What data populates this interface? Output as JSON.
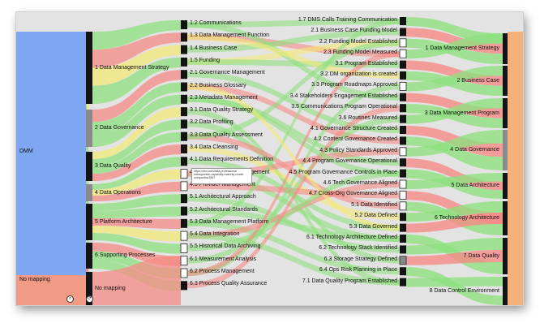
{
  "sankey": {
    "columns": [
      {
        "name": "source",
        "nodes": [
          {
            "label": "DMM",
            "color": "#7fa6f2"
          },
          {
            "label": "No mapping",
            "color": "#f19a86"
          }
        ]
      },
      {
        "name": "focus-areas",
        "nodes": [
          {
            "label": "1 Data Management Strategy"
          },
          {
            "label": "2 Data Governance"
          },
          {
            "label": "3 Data Quality"
          },
          {
            "label": "4 Data Operations"
          },
          {
            "label": "5 Platform Architecture"
          },
          {
            "label": "6 Supporting Processes"
          },
          {
            "label": "No mapping"
          }
        ]
      },
      {
        "name": "practices",
        "nodes": [
          {
            "label": "1.2 Communications"
          },
          {
            "label": "1.3 Data Management Function"
          },
          {
            "label": "1.4 Business Case"
          },
          {
            "label": "1.5 Funding"
          },
          {
            "label": "2.1 Governance Management"
          },
          {
            "label": "2.2 Business Glossary"
          },
          {
            "label": "2.3 Metadata Management"
          },
          {
            "label": "3.1 Data Quality Strategy"
          },
          {
            "label": "3.2 Data Profiling"
          },
          {
            "label": "3.3 Data Quality Assessment"
          },
          {
            "label": "3.4 Data Cleansing"
          },
          {
            "label": "4.1 Data Requirements Definition"
          },
          {
            "label": "4.2 Data Lifecycle Management"
          },
          {
            "label": "4.3 Provider Management"
          },
          {
            "label": "5.1 Architectural Approach"
          },
          {
            "label": "5.2 Architectural Standards"
          },
          {
            "label": "5.3 Data Management Platform"
          },
          {
            "label": "5.4 Data Integration"
          },
          {
            "label": "5.5 Historical Data Archiving"
          },
          {
            "label": "6.1 Measurement Analysis"
          },
          {
            "label": "6.2 Process Management"
          },
          {
            "label": "6.3 Process Quality Assurance"
          }
        ]
      },
      {
        "name": "capabilities",
        "nodes": [
          {
            "label": "1.7 DMS Calls Training Communication"
          },
          {
            "label": "2.1 Business Case Funding Model"
          },
          {
            "label": "2.2 Funding Model Established"
          },
          {
            "label": "2.3 Funding Model Measured"
          },
          {
            "label": "3.1 Program Established"
          },
          {
            "label": "3.2 DM organization is created"
          },
          {
            "label": "3.3 Program Roadmaps Approved"
          },
          {
            "label": "3.4 Stakeholders Engagement Established"
          },
          {
            "label": "3.5 Communications Program Operational"
          },
          {
            "label": "3.6 Routines Measured"
          },
          {
            "label": "4.1 Governance Structure Created"
          },
          {
            "label": "4.2 Content Governance Created"
          },
          {
            "label": "4.3 Policy Standards Approved"
          },
          {
            "label": "4.4 Program Governance Operational"
          },
          {
            "label": "4.5 Program Governance Controls in Place"
          },
          {
            "label": "4.6 Tech Governance Aligned"
          },
          {
            "label": "4.7 Cross-Org Governance Aligned"
          },
          {
            "label": "5.1 Data Identified"
          },
          {
            "label": "5.2 Data Defined"
          },
          {
            "label": "5.3 Data Governed"
          },
          {
            "label": "6.1 Technology Architecture Defined"
          },
          {
            "label": "6.2 Technology Stack Identified"
          },
          {
            "label": "6.3 Storage Strategy Defined"
          },
          {
            "label": "6.4 Ops Risk Planning in Place"
          },
          {
            "label": "7.1 Data Quality Program Established"
          }
        ]
      },
      {
        "name": "components",
        "nodes": [
          {
            "label": "1 Data Management Strategy"
          },
          {
            "label": "2 Business Case"
          },
          {
            "label": "3 Data Management Program"
          },
          {
            "label": "4 Data Governance"
          },
          {
            "label": "5 Data Architecture"
          },
          {
            "label": "6 Technology Architecture"
          },
          {
            "label": "7 Data Quality"
          },
          {
            "label": "8 Data Control Environment"
          }
        ]
      }
    ],
    "tooltip": {
      "lines": [
        "https://dmi.com/data-professional",
        "introspective-capability-maturity-model",
        "companies/3567"
      ]
    },
    "controls": {
      "zoom_icon": "magnifier-icon",
      "reset_icon": "reset-icon",
      "zoom_glyph": "⌕",
      "reset_glyph": "⟳"
    },
    "colors": {
      "flow_green": "#8fe07f",
      "flow_red": "#f58b86",
      "flow_yellow": "#f3ea78",
      "dmm_blue": "#7fa6f2",
      "no_mapping_salmon": "#f19a86",
      "component_orange": "#f5b07c",
      "node_black": "#141414",
      "node_gray": "#8a8a8a",
      "background": "#e3e3e3"
    }
  }
}
